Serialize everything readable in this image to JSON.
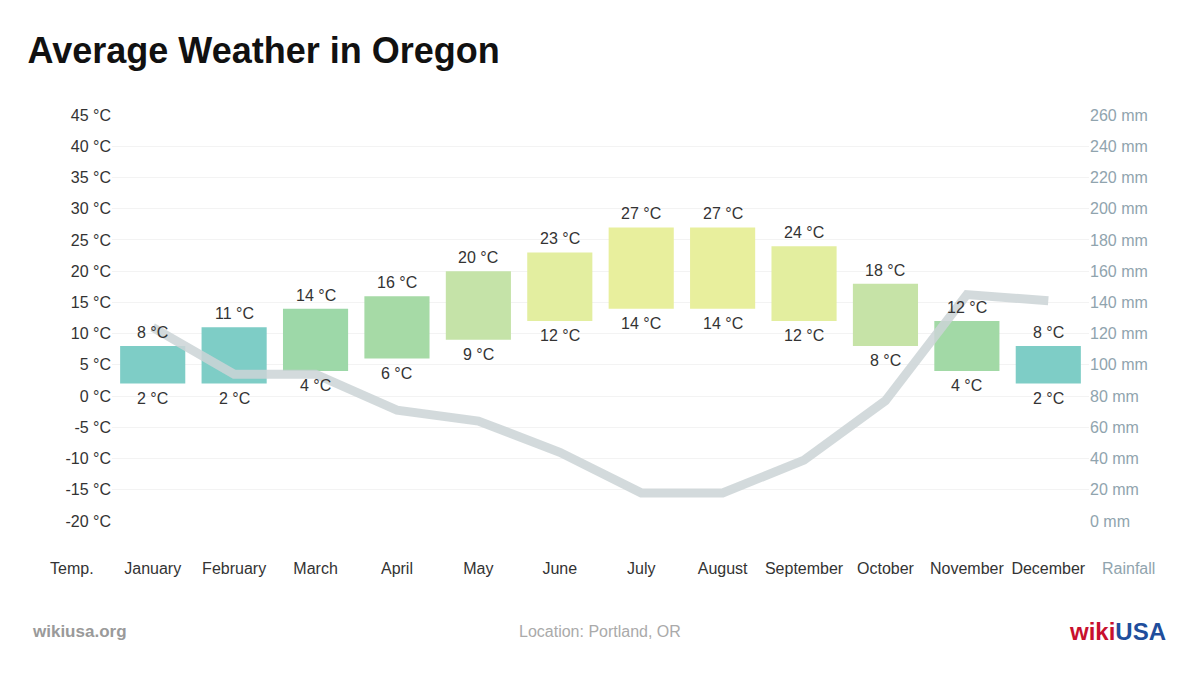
{
  "chart_data": {
    "type": "bar",
    "title": "Average Weather in Oregon",
    "categories": [
      "January",
      "February",
      "March",
      "April",
      "May",
      "June",
      "July",
      "August",
      "September",
      "October",
      "November",
      "December"
    ],
    "series": [
      {
        "type": "bar",
        "values": [
          8,
          11,
          14,
          16,
          20,
          23,
          27,
          27,
          24,
          18,
          12,
          8
        ],
        "value_labels": [
          "8 °C",
          "11 °C",
          "14 °C",
          "16 °C",
          "20 °C",
          "23 °C",
          "27 °C",
          "27 °C",
          "24 °C",
          "18 °C",
          "12 °C",
          "8 °C"
        ],
        "base": [
          2,
          2,
          4,
          6,
          9,
          12,
          14,
          14,
          12,
          8,
          4,
          2
        ],
        "base_labels": [
          "2 °C",
          "2 °C",
          "4 °C",
          "6 °C",
          "9 °C",
          "12 °C",
          "14 °C",
          "14 °C",
          "12 °C",
          "8 °C",
          "4 °C",
          "2 °C"
        ],
        "colors": [
          "#7ecdc6",
          "#7ecdc6",
          "#9dd8a8",
          "#a6daa6",
          "#c5e3a8",
          "#e3eea0",
          "#e8ef9d",
          "#e8ef9d",
          "#e3ee9f",
          "#c6e3a7",
          "#a2d9a6",
          "#7ecdc6"
        ]
      },
      {
        "type": "line",
        "axis": "y2",
        "color": "#cbd3d6",
        "values": [
          124,
          94,
          94,
          71,
          64,
          44,
          18,
          18,
          39,
          77,
          145,
          141
        ]
      }
    ],
    "data_labels": true,
    "grid": true,
    "y_label": "Temp.",
    "y2_label": "Rainfall",
    "ylim": [
      -20,
      45
    ],
    "yticks": [
      {
        "value": -20,
        "label": "-20 °C"
      },
      {
        "value": -15,
        "label": "-15 °C"
      },
      {
        "value": -10,
        "label": "-10 °C"
      },
      {
        "value": -5,
        "label": "-5 °C"
      },
      {
        "value": 0,
        "label": "0 °C"
      },
      {
        "value": 5,
        "label": "5 °C"
      },
      {
        "value": 10,
        "label": "10 °C"
      },
      {
        "value": 15,
        "label": "15 °C"
      },
      {
        "value": 20,
        "label": "20 °C"
      },
      {
        "value": 25,
        "label": "25 °C"
      },
      {
        "value": 30,
        "label": "30 °C"
      },
      {
        "value": 35,
        "label": "35 °C"
      },
      {
        "value": 40,
        "label": "40 °C"
      },
      {
        "value": 45,
        "label": "45 °C"
      }
    ],
    "y2lim": [
      0,
      260
    ],
    "y2ticks": [
      {
        "value": 0,
        "label": "0 mm"
      },
      {
        "value": 20,
        "label": "20 mm"
      },
      {
        "value": 40,
        "label": "40 mm"
      },
      {
        "value": 60,
        "label": "60 mm"
      },
      {
        "value": 80,
        "label": "80 mm"
      },
      {
        "value": 100,
        "label": "100 mm"
      },
      {
        "value": 120,
        "label": "120 mm"
      },
      {
        "value": 140,
        "label": "140 mm"
      },
      {
        "value": 160,
        "label": "160 mm"
      },
      {
        "value": 180,
        "label": "180 mm"
      },
      {
        "value": 200,
        "label": "200 mm"
      },
      {
        "value": 220,
        "label": "220 mm"
      },
      {
        "value": 240,
        "label": "240 mm"
      },
      {
        "value": 260,
        "label": "260 mm"
      }
    ],
    "annotations": [
      "wikiusa.org",
      "Location: Portland, OR"
    ],
    "logo": [
      {
        "text": "wiki",
        "color": "#c8102e"
      },
      {
        "text": "USA",
        "color": "#1f4e9c"
      }
    ]
  }
}
